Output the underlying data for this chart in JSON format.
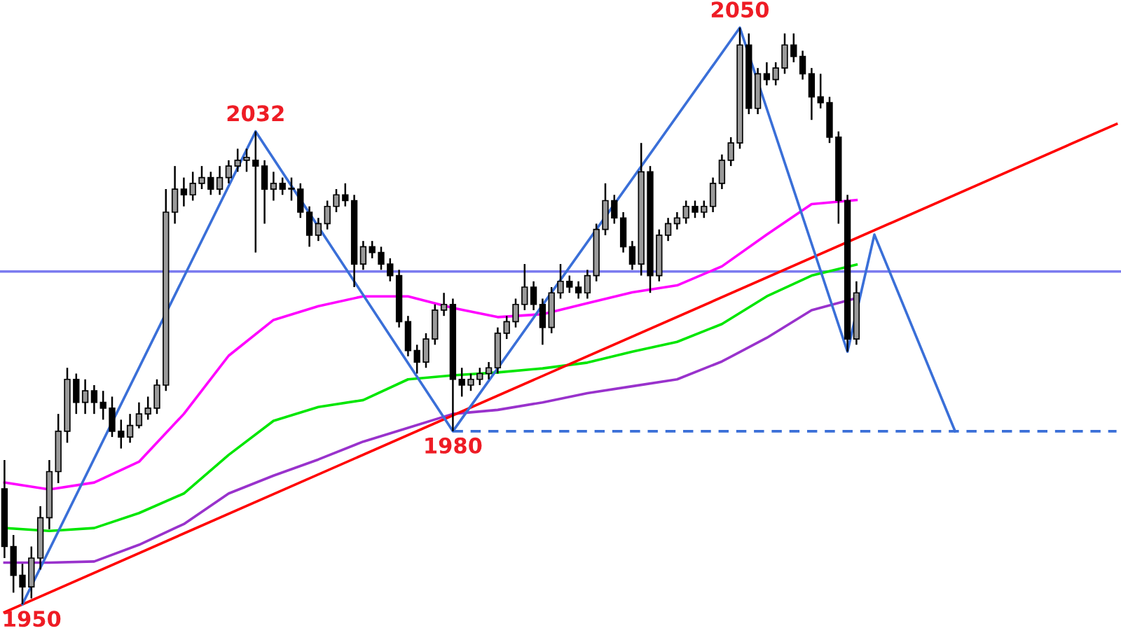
{
  "chart_data": {
    "type": "candlestick",
    "categories": [
      null,
      null,
      null,
      null,
      null,
      null,
      null,
      null,
      null,
      null,
      null,
      null,
      null,
      null,
      null,
      null,
      null,
      null,
      null,
      null,
      null,
      null,
      null,
      null,
      null,
      null,
      null,
      null,
      null,
      null,
      null,
      null,
      null,
      null,
      null,
      null,
      null,
      null,
      null,
      null,
      null,
      null,
      null,
      null,
      null,
      null,
      null,
      null,
      null,
      null,
      null,
      null,
      null,
      null,
      null,
      null,
      null,
      null,
      null,
      null,
      null,
      null,
      null,
      null,
      null,
      null,
      null,
      null,
      null,
      null,
      null,
      null,
      null,
      null,
      null,
      null,
      null,
      null,
      null,
      null,
      null,
      null,
      null,
      null,
      null,
      null,
      null,
      null,
      null,
      null,
      null,
      null,
      null,
      null,
      null,
      null,
      null,
      null,
      null,
      null,
      null,
      null,
      null,
      null,
      null,
      null,
      null,
      null,
      null,
      null,
      null,
      null,
      null,
      null,
      null,
      null,
      null,
      null,
      null,
      null,
      null,
      null,
      null,
      null,
      null
    ],
    "ohlc": [
      [
        1970,
        1975,
        1958,
        1960
      ],
      [
        1960,
        1962,
        1952,
        1955
      ],
      [
        1955,
        1957,
        1950,
        1953
      ],
      [
        1953,
        1960,
        1951,
        1958
      ],
      [
        1958,
        1967,
        1956,
        1965
      ],
      [
        1965,
        1975,
        1963,
        1973
      ],
      [
        1973,
        1983,
        1971,
        1980
      ],
      [
        1980,
        1991,
        1978,
        1989
      ],
      [
        1989,
        1990,
        1983,
        1985
      ],
      [
        1985,
        1989,
        1983,
        1987
      ],
      [
        1987,
        1988,
        1983,
        1985
      ],
      [
        1985,
        1987,
        1982,
        1984
      ],
      [
        1984,
        1986,
        1979,
        1980
      ],
      [
        1980,
        1982,
        1977,
        1979
      ],
      [
        1979,
        1983,
        1978,
        1981
      ],
      [
        1981,
        1985,
        1980.5,
        1983
      ],
      [
        1983,
        1986,
        1982,
        1984
      ],
      [
        1984,
        1989,
        1983,
        1988
      ],
      [
        1988,
        2022,
        1987,
        2018
      ],
      [
        2018,
        2026,
        2016,
        2022
      ],
      [
        2022,
        2024,
        2019,
        2021
      ],
      [
        2021,
        2025,
        2020,
        2023
      ],
      [
        2023,
        2026,
        2022,
        2024
      ],
      [
        2024,
        2025,
        2021,
        2022
      ],
      [
        2022,
        2026,
        2021,
        2024
      ],
      [
        2024,
        2027,
        2023,
        2026
      ],
      [
        2026,
        2029,
        2025,
        2027
      ],
      [
        2027,
        2029,
        2025,
        2027.5
      ],
      [
        2027,
        2032,
        2011,
        2026
      ],
      [
        2026,
        2027,
        2016,
        2022
      ],
      [
        2022,
        2025,
        2020,
        2023
      ],
      [
        2023,
        2024,
        2021,
        2022
      ],
      [
        2022,
        2024,
        2020,
        2022
      ],
      [
        2022,
        2023,
        2017,
        2018
      ],
      [
        2018,
        2019,
        2012,
        2014
      ],
      [
        2014,
        2017,
        2013,
        2016
      ],
      [
        2016,
        2020,
        2015,
        2019
      ],
      [
        2019,
        2022,
        2018,
        2021
      ],
      [
        2021,
        2023,
        2019,
        2020
      ],
      [
        2020,
        2021,
        2005,
        2009
      ],
      [
        2009,
        2013,
        2008,
        2012
      ],
      [
        2012,
        2013,
        2010,
        2011
      ],
      [
        2011,
        2012,
        2008,
        2009
      ],
      [
        2009,
        2010,
        2006,
        2007
      ],
      [
        2007,
        2008,
        1998,
        1999
      ],
      [
        1999,
        2000,
        1993,
        1994
      ],
      [
        1994,
        1995,
        1990,
        1992
      ],
      [
        1992,
        1997,
        1991,
        1996
      ],
      [
        1996,
        2002,
        1995,
        2001
      ],
      [
        2001,
        2004,
        2000,
        2002
      ],
      [
        2002,
        2003,
        1980,
        1989
      ],
      [
        1989,
        1991,
        1986,
        1988
      ],
      [
        1988,
        1990,
        1987,
        1989
      ],
      [
        1989,
        1991,
        1988,
        1990
      ],
      [
        1990,
        1992,
        1989,
        1991
      ],
      [
        1991,
        1998,
        1990,
        1997
      ],
      [
        1997,
        2000,
        1996,
        1999
      ],
      [
        1999,
        2003,
        1998,
        2002
      ],
      [
        2002,
        2009,
        2001,
        2005
      ],
      [
        2005,
        2006,
        2001,
        2002
      ],
      [
        2002,
        2003,
        1995,
        1998
      ],
      [
        1998,
        2005,
        1997,
        2004
      ],
      [
        2004,
        2009,
        2003,
        2006
      ],
      [
        2006,
        2007,
        2004,
        2005
      ],
      [
        2005,
        2006,
        2003,
        2004
      ],
      [
        2004,
        2008,
        2003,
        2007
      ],
      [
        2007,
        2016,
        2006,
        2015
      ],
      [
        2015,
        2023,
        2014,
        2020
      ],
      [
        2020,
        2021,
        2016,
        2017
      ],
      [
        2017,
        2018,
        2011,
        2012
      ],
      [
        2012,
        2013,
        2008,
        2009
      ],
      [
        2009,
        2030,
        2007,
        2025
      ],
      [
        2025,
        2026,
        2004,
        2007
      ],
      [
        2007,
        2015,
        2006,
        2014
      ],
      [
        2014,
        2017,
        2013,
        2016
      ],
      [
        2016,
        2018,
        2015,
        2017
      ],
      [
        2017,
        2020,
        2016,
        2019
      ],
      [
        2019,
        2020,
        2017,
        2018
      ],
      [
        2018,
        2020,
        2017,
        2019
      ],
      [
        2019,
        2024,
        2018,
        2023
      ],
      [
        2023,
        2028,
        2022,
        2027
      ],
      [
        2027,
        2031,
        2026,
        2030
      ],
      [
        2030,
        2050,
        2029,
        2047
      ],
      [
        2047,
        2049,
        2035,
        2036
      ],
      [
        2036,
        2043,
        2035,
        2042
      ],
      [
        2042,
        2044,
        2040,
        2041
      ],
      [
        2041,
        2044,
        2040,
        2043
      ],
      [
        2043,
        2049,
        2042,
        2047
      ],
      [
        2047,
        2049,
        2044,
        2045
      ],
      [
        2045,
        2046,
        2041,
        2042
      ],
      [
        2042,
        2043,
        2034,
        2038
      ],
      [
        2038,
        2042,
        2036,
        2037
      ],
      [
        2037,
        2038,
        2030,
        2031
      ],
      [
        2031,
        2032,
        2016,
        2020
      ],
      [
        2020,
        2021,
        1993.8,
        1996
      ],
      [
        1996,
        2006,
        1995,
        2004
      ],
      null,
      null,
      null,
      null,
      null,
      null,
      null,
      null,
      null,
      null,
      null,
      null,
      null,
      null,
      null,
      null,
      null,
      null,
      null,
      null,
      null,
      null,
      null,
      null,
      null,
      null,
      null,
      null,
      null
    ],
    "series": [
      {
        "type": "line",
        "color": "#ff00ff",
        "values": [
          1971.1,
          null,
          null,
          null,
          null,
          1969.9,
          null,
          null,
          null,
          null,
          1971.1,
          null,
          null,
          null,
          null,
          1974.7,
          null,
          null,
          null,
          null,
          1983.0,
          null,
          null,
          null,
          null,
          1993.1,
          null,
          null,
          null,
          null,
          1999.3,
          null,
          null,
          null,
          null,
          2001.7,
          null,
          null,
          null,
          null,
          2003.4,
          null,
          null,
          null,
          null,
          2003.4,
          null,
          null,
          null,
          null,
          2001.4,
          null,
          null,
          null,
          null,
          1999.8,
          null,
          null,
          null,
          null,
          2000.3,
          null,
          null,
          null,
          null,
          2002.2,
          null,
          null,
          null,
          null,
          2004.1,
          null,
          null,
          null,
          null,
          2005.3,
          null,
          null,
          null,
          null,
          2008.6,
          null,
          null,
          null,
          null,
          2014.1,
          null,
          null,
          null,
          null,
          2019.4,
          null,
          null,
          null,
          null,
          2020.1,
          null,
          null,
          null,
          null,
          null,
          null,
          null,
          null,
          null,
          null,
          null,
          null,
          null,
          null,
          null,
          null,
          null,
          null,
          null,
          null,
          null,
          null,
          null,
          null,
          null,
          null,
          null,
          null,
          null
        ]
      },
      {
        "type": "line",
        "color": "#00e600",
        "values": [
          1963.2,
          null,
          null,
          null,
          null,
          1962.7,
          null,
          null,
          null,
          null,
          1963.2,
          null,
          null,
          null,
          null,
          1965.8,
          null,
          null,
          null,
          null,
          1969.2,
          null,
          null,
          null,
          null,
          1975.9,
          null,
          null,
          null,
          null,
          1981.8,
          null,
          null,
          null,
          null,
          1984.2,
          null,
          null,
          null,
          null,
          1985.4,
          null,
          null,
          null,
          null,
          1989.0,
          null,
          null,
          null,
          null,
          1989.7,
          null,
          null,
          null,
          null,
          1990.2,
          null,
          null,
          null,
          null,
          1990.9,
          null,
          null,
          null,
          null,
          1991.9,
          null,
          null,
          null,
          null,
          1993.8,
          null,
          null,
          null,
          null,
          1995.5,
          null,
          null,
          null,
          null,
          1998.6,
          null,
          null,
          null,
          null,
          2003.4,
          null,
          null,
          null,
          null,
          2007.0,
          null,
          null,
          null,
          null,
          2008.9,
          null,
          null,
          null,
          null,
          null,
          null,
          null,
          null,
          null,
          null,
          null,
          null,
          null,
          null,
          null,
          null,
          null,
          null,
          null,
          null,
          null,
          null,
          null,
          null,
          null,
          null,
          null,
          null,
          null
        ]
      },
      {
        "type": "line",
        "color": "#9932cc",
        "values": [
          1957.2,
          null,
          null,
          null,
          null,
          1957.2,
          null,
          null,
          null,
          null,
          1957.4,
          null,
          null,
          null,
          null,
          1960.3,
          null,
          null,
          null,
          null,
          1963.9,
          null,
          null,
          null,
          null,
          1969.2,
          null,
          null,
          null,
          null,
          1972.3,
          null,
          null,
          null,
          null,
          1975.1,
          null,
          null,
          null,
          null,
          1978.2,
          null,
          null,
          null,
          null,
          1980.6,
          null,
          null,
          null,
          null,
          1983.0,
          null,
          null,
          null,
          null,
          1983.7,
          null,
          null,
          null,
          null,
          1985.0,
          null,
          null,
          null,
          null,
          1986.6,
          null,
          null,
          null,
          null,
          1987.8,
          null,
          null,
          null,
          null,
          1989.0,
          null,
          null,
          null,
          null,
          1992.1,
          null,
          null,
          null,
          null,
          1996.2,
          null,
          null,
          null,
          null,
          2001.0,
          null,
          null,
          null,
          null,
          2003.1,
          null,
          null,
          null,
          null,
          null,
          null,
          null,
          null,
          null,
          null,
          null,
          null,
          null,
          null,
          null,
          null,
          null,
          null,
          null,
          null,
          null,
          null,
          null,
          null,
          null,
          null,
          null,
          null,
          null
        ]
      },
      {
        "type": "line",
        "color": "#ff0000",
        "values": [
          1948.6,
          null,
          null,
          null,
          null,
          null,
          null,
          null,
          null,
          null,
          null,
          null,
          null,
          null,
          null,
          null,
          null,
          null,
          null,
          null,
          null,
          null,
          null,
          null,
          null,
          null,
          null,
          null,
          null,
          null,
          null,
          null,
          null,
          null,
          null,
          null,
          null,
          null,
          null,
          null,
          null,
          null,
          null,
          null,
          null,
          null,
          null,
          null,
          null,
          null,
          null,
          null,
          null,
          null,
          null,
          null,
          null,
          null,
          null,
          null,
          null,
          null,
          null,
          null,
          null,
          null,
          null,
          null,
          null,
          null,
          null,
          null,
          null,
          null,
          null,
          null,
          null,
          null,
          null,
          null,
          null,
          null,
          null,
          null,
          null,
          null,
          null,
          null,
          null,
          null,
          null,
          null,
          null,
          null,
          null,
          null,
          null,
          null,
          null,
          null,
          null,
          null,
          null,
          null,
          null,
          null,
          null,
          null,
          null,
          null,
          null,
          null,
          null,
          null,
          null,
          null,
          null,
          null,
          null,
          null,
          null,
          null,
          null,
          null,
          2033.3
        ]
      },
      {
        "type": "line",
        "color": "#3a6fd8",
        "values": [
          null,
          null,
          1950,
          null,
          null,
          null,
          null,
          null,
          null,
          null,
          null,
          null,
          null,
          null,
          null,
          null,
          null,
          null,
          null,
          null,
          null,
          null,
          null,
          null,
          null,
          null,
          null,
          null,
          2032,
          null,
          null,
          null,
          null,
          null,
          null,
          null,
          null,
          null,
          null,
          null,
          null,
          null,
          null,
          null,
          null,
          null,
          null,
          null,
          null,
          null,
          1980,
          null,
          null,
          null,
          null,
          null,
          null,
          null,
          null,
          null,
          null,
          null,
          null,
          null,
          null,
          null,
          null,
          null,
          null,
          null,
          null,
          null,
          null,
          null,
          null,
          null,
          null,
          null,
          null,
          null,
          null,
          null,
          2050,
          null,
          null,
          null,
          null,
          null,
          null,
          null,
          null,
          null,
          null,
          null,
          1993.8,
          null,
          null,
          2014.1,
          null,
          null,
          null,
          null,
          null,
          null,
          null,
          null,
          1980,
          null,
          null,
          null,
          null,
          null,
          null,
          null,
          null,
          null,
          null,
          null,
          null,
          null,
          null,
          null,
          null,
          null,
          null
        ]
      },
      {
        "type": "line",
        "color": "#3a6fd8",
        "line_style": "dashed",
        "values": [
          null,
          null,
          null,
          null,
          null,
          null,
          null,
          null,
          null,
          null,
          null,
          null,
          null,
          null,
          null,
          null,
          null,
          null,
          null,
          null,
          null,
          null,
          null,
          null,
          null,
          null,
          null,
          null,
          null,
          null,
          null,
          null,
          null,
          null,
          null,
          null,
          null,
          null,
          null,
          null,
          null,
          null,
          null,
          null,
          null,
          null,
          null,
          null,
          null,
          null,
          1980,
          null,
          null,
          null,
          null,
          null,
          null,
          null,
          null,
          null,
          null,
          null,
          null,
          null,
          null,
          null,
          null,
          null,
          null,
          null,
          null,
          null,
          null,
          null,
          null,
          null,
          null,
          null,
          null,
          null,
          null,
          null,
          null,
          null,
          null,
          null,
          null,
          null,
          null,
          null,
          null,
          null,
          null,
          null,
          null,
          null,
          null,
          null,
          null,
          null,
          null,
          null,
          null,
          null,
          null,
          null,
          null,
          null,
          null,
          null,
          null,
          null,
          null,
          null,
          null,
          null,
          null,
          null,
          null,
          null,
          null,
          null,
          null,
          null,
          1980
        ]
      }
    ],
    "ref_lines": [
      {
        "axis": "y",
        "value": 2007.7,
        "color": "#7b7bf0"
      }
    ],
    "annotations": [
      {
        "text": "2032",
        "y": 2032
      },
      {
        "text": "2050",
        "y": 2050
      },
      "1950",
      {
        "text": "1980",
        "y": 1980
      }
    ],
    "ylim": [
      1945,
      2054.8
    ],
    "legend": false,
    "grid": false,
    "tick_labels": false
  }
}
